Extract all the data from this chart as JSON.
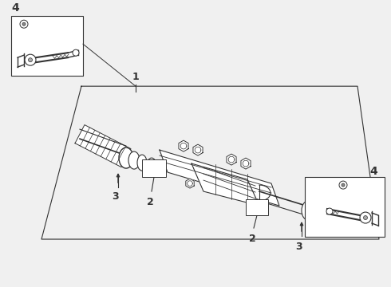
{
  "bg_color": "#f0f0f0",
  "line_color": "#333333",
  "figsize": [
    4.9,
    3.6
  ],
  "dpi": 100,
  "labels": {
    "1": "1",
    "2": "2",
    "3": "3",
    "4": "4"
  }
}
